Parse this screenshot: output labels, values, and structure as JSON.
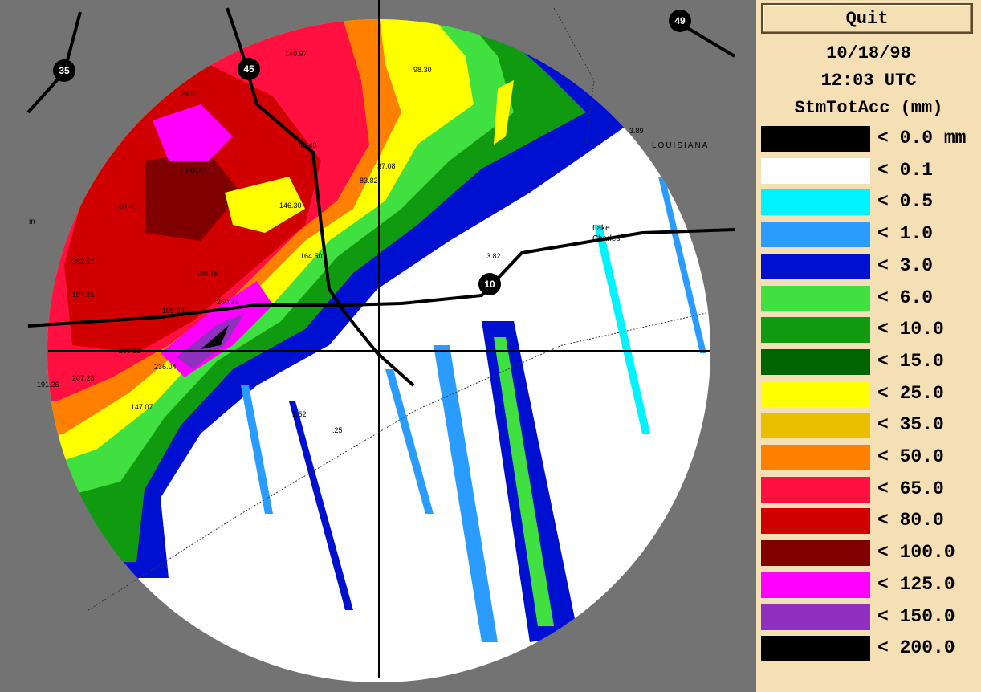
{
  "panel": {
    "button": "Quit",
    "date": "10/18/98",
    "time": "12:03 UTC",
    "product": "StmTotAcc (mm)",
    "legend": [
      {
        "label": "< 0.0 mm",
        "color": "#000000"
      },
      {
        "label": "< 0.1",
        "color": "#ffffff"
      },
      {
        "label": "< 0.5",
        "color": "#00f4ff"
      },
      {
        "label": "< 1.0",
        "color": "#2a9cff"
      },
      {
        "label": "< 3.0",
        "color": "#0010d0"
      },
      {
        "label": "< 6.0",
        "color": "#40e040"
      },
      {
        "label": "< 10.0",
        "color": "#109a10"
      },
      {
        "label": "< 15.0",
        "color": "#006400"
      },
      {
        "label": "< 25.0",
        "color": "#ffff00"
      },
      {
        "label": "< 35.0",
        "color": "#e8c000"
      },
      {
        "label": "< 50.0",
        "color": "#ff8000"
      },
      {
        "label": "< 65.0",
        "color": "#ff1040"
      },
      {
        "label": "< 80.0",
        "color": "#d00000"
      },
      {
        "label": "< 100.0",
        "color": "#800000"
      },
      {
        "label": "< 125.0",
        "color": "#ff00ff"
      },
      {
        "label": "< 150.0",
        "color": "#9030c0"
      },
      {
        "label": "< 200.0",
        "color": "#000000"
      }
    ]
  },
  "map": {
    "state_label": "LOUISIANA",
    "city_label": [
      "Lake",
      "Charles"
    ],
    "highways": [
      "35",
      "45",
      "49",
      "10"
    ],
    "edge_label": "in",
    "values": [
      "140.97",
      "98.30",
      "29.07",
      "53.43",
      "37.08",
      "83.82",
      "186.82",
      "60.45",
      "146.30",
      "252.93",
      "164.50",
      "190.78",
      "194.31",
      "199.29",
      "260.39",
      "200.81",
      "236.04",
      "207.28",
      "191.26",
      "147.07",
      "1.52",
      ".25",
      "3.89",
      "3.82"
    ]
  }
}
